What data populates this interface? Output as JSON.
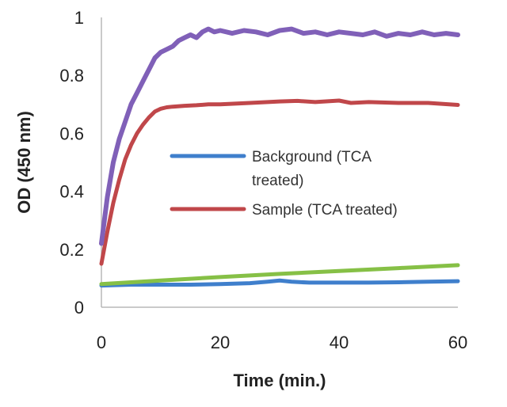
{
  "chart_data": {
    "type": "line",
    "title": "",
    "xlabel": "Time (min.)",
    "ylabel": "OD (450 nm)",
    "xlim": [
      0,
      60
    ],
    "ylim": [
      0,
      1
    ],
    "x_ticks": [
      "0",
      "20",
      "40",
      "60"
    ],
    "y_ticks": [
      "0",
      "0.2",
      "0.4",
      "0.6",
      "0.8",
      "1"
    ],
    "grid": false,
    "legend_position": "center-right",
    "series": [
      {
        "name": "Background (TCA treated)",
        "legend_lines": [
          "Background (TCA",
          "treated)"
        ],
        "color": "#3f7fcc",
        "x": [
          0,
          5,
          10,
          15,
          20,
          25,
          28,
          30,
          32,
          35,
          40,
          45,
          50,
          55,
          60
        ],
        "y": [
          0.075,
          0.078,
          0.078,
          0.078,
          0.08,
          0.083,
          0.088,
          0.092,
          0.088,
          0.085,
          0.085,
          0.085,
          0.086,
          0.088,
          0.09
        ]
      },
      {
        "name": "Sample (TCA treated)",
        "legend_lines": [
          "Sample (TCA treated)"
        ],
        "color": "#c0474a",
        "x": [
          0,
          1,
          2,
          3,
          4,
          5,
          6,
          7,
          8,
          9,
          10,
          11,
          12,
          14,
          16,
          18,
          20,
          25,
          30,
          33,
          36,
          40,
          42,
          45,
          50,
          55,
          60
        ],
        "y": [
          0.15,
          0.26,
          0.36,
          0.44,
          0.51,
          0.56,
          0.6,
          0.63,
          0.655,
          0.675,
          0.685,
          0.69,
          0.692,
          0.695,
          0.697,
          0.7,
          0.7,
          0.705,
          0.71,
          0.712,
          0.708,
          0.713,
          0.705,
          0.708,
          0.705,
          0.705,
          0.698
        ]
      },
      {
        "color": "#8060b8",
        "x": [
          0,
          1,
          2,
          3,
          4,
          5,
          6,
          7,
          8,
          9,
          10,
          11,
          12,
          13,
          14,
          15,
          16,
          17,
          18,
          19,
          20,
          22,
          24,
          26,
          28,
          30,
          32,
          34,
          36,
          38,
          40,
          42,
          44,
          46,
          48,
          50,
          52,
          54,
          56,
          58,
          60
        ],
        "y": [
          0.22,
          0.38,
          0.5,
          0.58,
          0.64,
          0.7,
          0.74,
          0.78,
          0.82,
          0.86,
          0.88,
          0.89,
          0.9,
          0.92,
          0.93,
          0.94,
          0.93,
          0.95,
          0.96,
          0.95,
          0.955,
          0.945,
          0.955,
          0.95,
          0.94,
          0.955,
          0.96,
          0.945,
          0.95,
          0.94,
          0.95,
          0.945,
          0.94,
          0.95,
          0.935,
          0.945,
          0.94,
          0.95,
          0.94,
          0.945,
          0.94
        ]
      },
      {
        "color": "#86c046",
        "x": [
          0,
          10,
          20,
          30,
          40,
          50,
          60
        ],
        "y": [
          0.08,
          0.092,
          0.104,
          0.115,
          0.125,
          0.135,
          0.145
        ]
      }
    ]
  }
}
